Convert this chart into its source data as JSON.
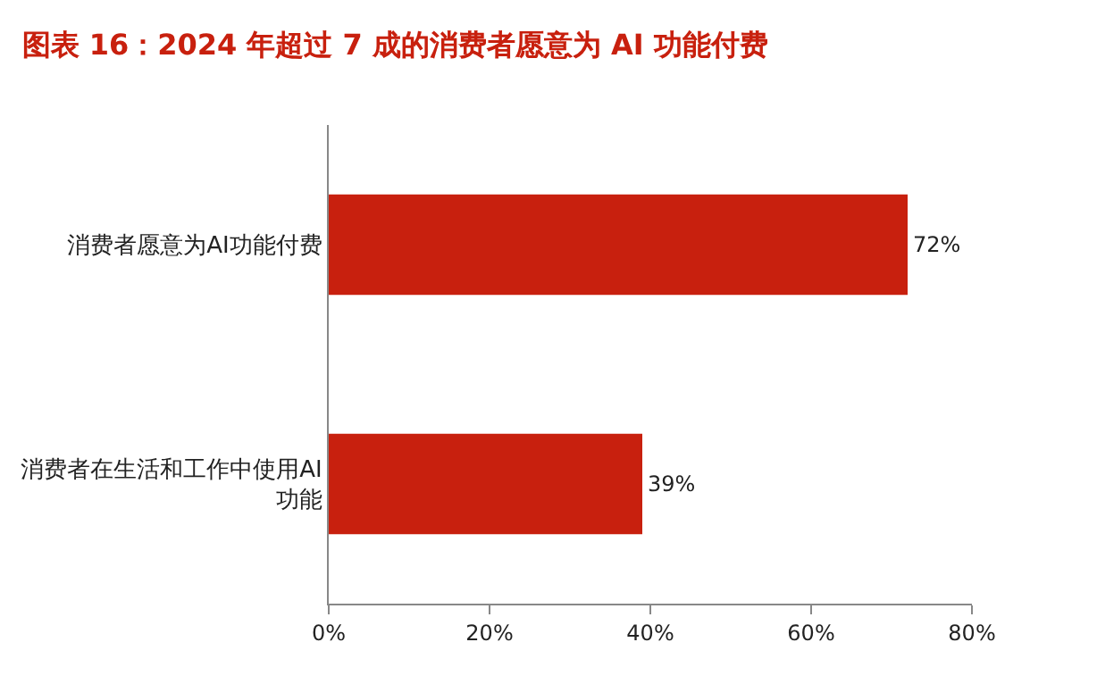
{
  "chart_data": {
    "type": "bar",
    "orientation": "horizontal",
    "title": "图表 16：2024 年超过 7 成的消费者愿意为 AI 功能付费",
    "categories": [
      "消费者愿意为AI功能付费",
      "消费者在生活和工作中使用AI功能"
    ],
    "values": [
      72,
      39
    ],
    "color": "#c8200e",
    "value_labels": [
      "72%",
      "39%"
    ],
    "xlim": [
      0,
      80
    ],
    "xticks": [
      {
        "value": 0,
        "label": "0%"
      },
      {
        "value": 20,
        "label": "20%"
      },
      {
        "value": 40,
        "label": "40%"
      },
      {
        "value": 60,
        "label": "60%"
      },
      {
        "value": 80,
        "label": "80%"
      }
    ],
    "grid": false,
    "legend": false
  }
}
